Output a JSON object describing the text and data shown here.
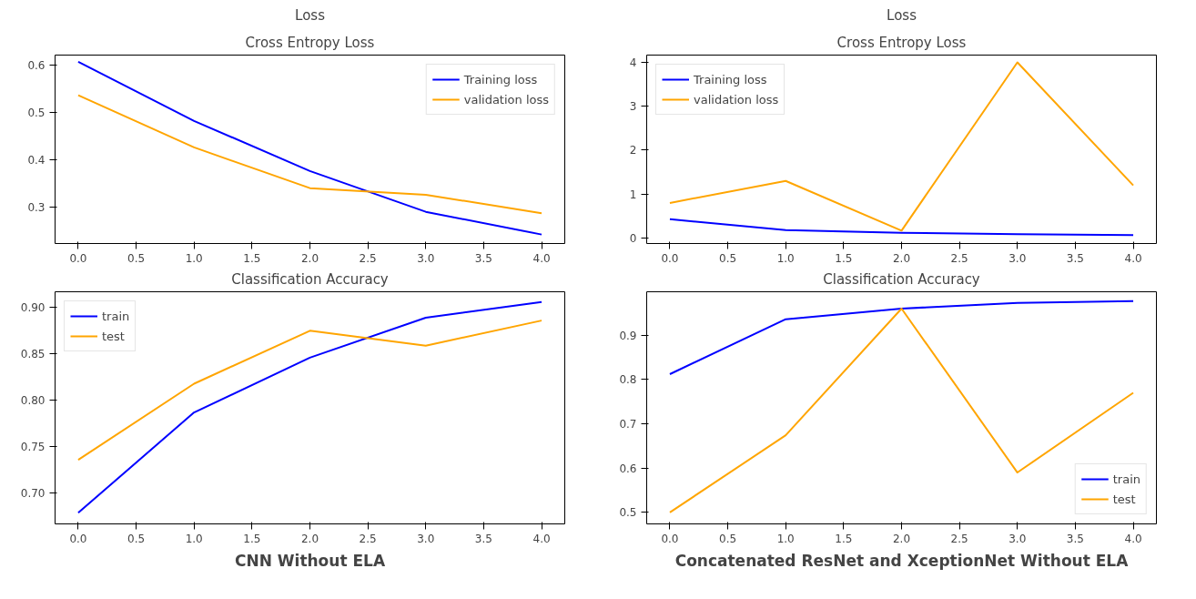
{
  "chart_data": [
    {
      "type": "line",
      "title": "Loss",
      "subtitle": "Cross Entropy Loss",
      "x": [
        0,
        1,
        2,
        3,
        4
      ],
      "xlim": [
        -0.2,
        4.2
      ],
      "xticks": [
        {
          "value": 0,
          "label": "0.0"
        },
        {
          "value": 0.5,
          "label": "0.5"
        },
        {
          "value": 1,
          "label": "1.0"
        },
        {
          "value": 1.5,
          "label": "1.5"
        },
        {
          "value": 2,
          "label": "2.0"
        },
        {
          "value": 2.5,
          "label": "2.5"
        },
        {
          "value": 3,
          "label": "3.0"
        },
        {
          "value": 3.5,
          "label": "3.5"
        },
        {
          "value": 4,
          "label": "4.0"
        }
      ],
      "ylim": [
        0.223,
        0.621
      ],
      "yticks": [
        {
          "value": 0.3,
          "label": "0.3"
        },
        {
          "value": 0.4,
          "label": "0.4"
        },
        {
          "value": 0.5,
          "label": "0.5"
        },
        {
          "value": 0.6,
          "label": "0.6"
        }
      ],
      "grid": false,
      "legend": "top right",
      "series": [
        {
          "name": "Training loss",
          "color": "#0000ff",
          "values": [
            0.607,
            0.482,
            0.376,
            0.29,
            0.242
          ]
        },
        {
          "name": "validation loss",
          "color": "#ffa500",
          "values": [
            0.536,
            0.426,
            0.34,
            0.326,
            0.287
          ]
        }
      ]
    },
    {
      "type": "line",
      "title": "Classification Accuracy",
      "x": [
        0,
        1,
        2,
        3,
        4
      ],
      "xlim": [
        -0.2,
        4.2
      ],
      "xticks": [
        {
          "value": 0,
          "label": "0.0"
        },
        {
          "value": 0.5,
          "label": "0.5"
        },
        {
          "value": 1,
          "label": "1.0"
        },
        {
          "value": 1.5,
          "label": "1.5"
        },
        {
          "value": 2,
          "label": "2.0"
        },
        {
          "value": 2.5,
          "label": "2.5"
        },
        {
          "value": 3,
          "label": "3.0"
        },
        {
          "value": 3.5,
          "label": "3.5"
        },
        {
          "value": 4,
          "label": "4.0"
        }
      ],
      "ylim": [
        0.667,
        0.917
      ],
      "yticks": [
        {
          "value": 0.7,
          "label": "0.70"
        },
        {
          "value": 0.75,
          "label": "0.75"
        },
        {
          "value": 0.8,
          "label": "0.80"
        },
        {
          "value": 0.85,
          "label": "0.85"
        },
        {
          "value": 0.9,
          "label": "0.90"
        }
      ],
      "grid": false,
      "legend": "top left",
      "annotations": [
        "CNN Without ELA"
      ],
      "series": [
        {
          "name": "train",
          "color": "#0000ff",
          "values": [
            0.679,
            0.787,
            0.846,
            0.889,
            0.906
          ]
        },
        {
          "name": "test",
          "color": "#ffa500",
          "values": [
            0.736,
            0.818,
            0.875,
            0.859,
            0.886
          ]
        }
      ]
    },
    {
      "type": "line",
      "title": "Loss",
      "subtitle": "Cross Entropy Loss",
      "x": [
        0,
        1,
        2,
        3,
        4
      ],
      "xlim": [
        -0.2,
        4.2
      ],
      "xticks": [
        {
          "value": 0,
          "label": "0.0"
        },
        {
          "value": 0.5,
          "label": "0.5"
        },
        {
          "value": 1,
          "label": "1.0"
        },
        {
          "value": 1.5,
          "label": "1.5"
        },
        {
          "value": 2,
          "label": "2.0"
        },
        {
          "value": 2.5,
          "label": "2.5"
        },
        {
          "value": 3,
          "label": "3.0"
        },
        {
          "value": 3.5,
          "label": "3.5"
        },
        {
          "value": 4,
          "label": "4.0"
        }
      ],
      "ylim": [
        -0.124,
        4.165
      ],
      "yticks": [
        0,
        1,
        2,
        3,
        4
      ],
      "grid": false,
      "legend": "top left",
      "series": [
        {
          "name": "Training loss",
          "color": "#0000ff",
          "values": [
            0.43,
            0.18,
            0.12,
            0.09,
            0.07
          ]
        },
        {
          "name": "validation loss",
          "color": "#ffa500",
          "values": [
            0.8,
            1.3,
            0.17,
            4.0,
            1.2
          ]
        }
      ]
    },
    {
      "type": "line",
      "title": "Classification Accuracy",
      "x": [
        0,
        1,
        2,
        3,
        4
      ],
      "xlim": [
        -0.2,
        4.2
      ],
      "xticks": [
        {
          "value": 0,
          "label": "0.0"
        },
        {
          "value": 0.5,
          "label": "0.5"
        },
        {
          "value": 1,
          "label": "1.0"
        },
        {
          "value": 1.5,
          "label": "1.5"
        },
        {
          "value": 2,
          "label": "2.0"
        },
        {
          "value": 2.5,
          "label": "2.5"
        },
        {
          "value": 3,
          "label": "3.0"
        },
        {
          "value": 3.5,
          "label": "3.5"
        },
        {
          "value": 4,
          "label": "4.0"
        }
      ],
      "ylim": [
        0.474,
        0.998
      ],
      "yticks": [
        0.5,
        0.6,
        0.7,
        0.8,
        0.9
      ],
      "grid": false,
      "legend": "bottom right",
      "annotations": [
        "Concatenated ResNet and XceptionNet Without ELA"
      ],
      "series": [
        {
          "name": "train",
          "color": "#0000ff",
          "values": [
            0.812,
            0.936,
            0.96,
            0.973,
            0.977
          ]
        },
        {
          "name": "test",
          "color": "#ffa500",
          "values": [
            0.5,
            0.674,
            0.96,
            0.59,
            0.77
          ]
        }
      ]
    }
  ]
}
